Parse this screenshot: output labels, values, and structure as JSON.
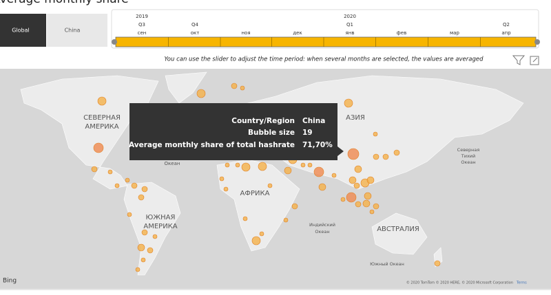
{
  "header": {
    "title": "Average monthly share"
  },
  "filters": {
    "buttons": [
      "Global",
      "China"
    ]
  },
  "timeline": {
    "years": [
      "2019",
      "2020"
    ],
    "quarters": [
      "Q3",
      "Q4",
      "Q1",
      "Q2"
    ],
    "months": [
      "сен",
      "окт",
      "ноя",
      "дек",
      "янв",
      "фев",
      "мар",
      "апр"
    ],
    "note": "You can use the slider to adjust the time period: when several months are selected, the values are averaged"
  },
  "map": {
    "labels": [
      "СЕВЕРНАЯ",
      "АМЕРИКА",
      "ЮЖНАЯ",
      "АМЕРИКА",
      "АФРИКА",
      "АЗИЯ",
      "АВСТРАЛИЯ",
      "Океан",
      "Индийский",
      "Океан",
      "Северная",
      "Тихий",
      "Океан",
      "Южный Океан"
    ],
    "logo": "Bing",
    "attribution": "© 2020 TomTom © 2020 HERE, © 2020 Microsoft Corporation",
    "terms": "Terms"
  },
  "tooltip": {
    "rows": [
      [
        "Country/Region",
        "China"
      ],
      [
        "Bubble size",
        "19"
      ],
      [
        "Average monthly share of total hashrate",
        "71,70%"
      ]
    ]
  }
}
